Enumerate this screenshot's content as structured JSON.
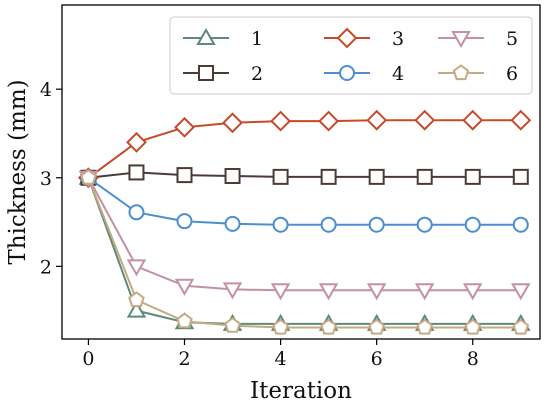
{
  "chart_data": {
    "type": "line",
    "xlabel": "Iteration",
    "ylabel": "Thickness (mm)",
    "x": [
      0,
      1,
      2,
      3,
      4,
      5,
      6,
      7,
      8,
      9
    ],
    "xticks": [
      0,
      2,
      4,
      6,
      8
    ],
    "yticks": [
      2,
      3,
      4
    ],
    "xlim": [
      -0.55,
      9.4
    ],
    "ylim": [
      1.18,
      4.95
    ],
    "grid": false,
    "legend_position": "top-right",
    "series": [
      {
        "name": "1",
        "marker": "triangle-up",
        "color": "#5d8a79",
        "values": [
          3.0,
          1.5,
          1.37,
          1.35,
          1.35,
          1.35,
          1.35,
          1.35,
          1.35,
          1.35
        ]
      },
      {
        "name": "2",
        "marker": "square",
        "color": "#4c3a36",
        "values": [
          3.0,
          3.06,
          3.03,
          3.02,
          3.01,
          3.01,
          3.01,
          3.01,
          3.01,
          3.01
        ]
      },
      {
        "name": "3",
        "marker": "diamond",
        "color": "#c64a2a",
        "values": [
          3.0,
          3.4,
          3.57,
          3.62,
          3.64,
          3.64,
          3.65,
          3.65,
          3.65,
          3.65
        ]
      },
      {
        "name": "4",
        "marker": "circle",
        "color": "#4c8fd0",
        "values": [
          3.0,
          2.61,
          2.51,
          2.48,
          2.47,
          2.47,
          2.47,
          2.47,
          2.47,
          2.47
        ]
      },
      {
        "name": "5",
        "marker": "triangle-down",
        "color": "#c490a4",
        "values": [
          3.0,
          2.0,
          1.78,
          1.74,
          1.73,
          1.73,
          1.73,
          1.73,
          1.73,
          1.73
        ]
      },
      {
        "name": "6",
        "marker": "pentagon",
        "color": "#c4aa85",
        "values": [
          3.0,
          1.62,
          1.38,
          1.33,
          1.31,
          1.31,
          1.31,
          1.31,
          1.31,
          1.31
        ]
      }
    ]
  }
}
